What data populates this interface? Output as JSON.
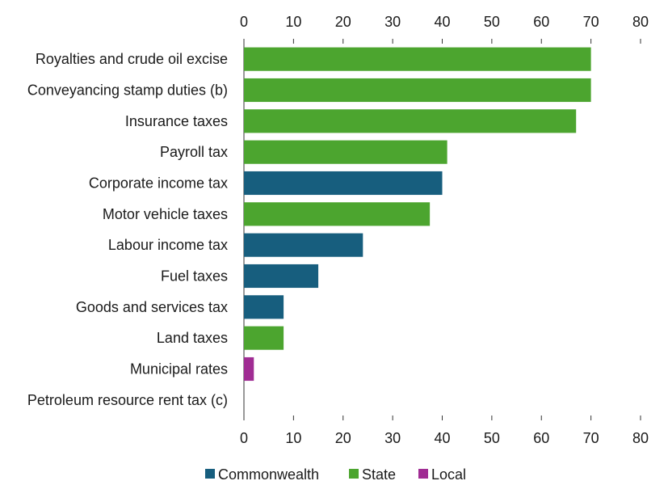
{
  "chart_data": {
    "type": "bar",
    "orientation": "horizontal",
    "title": "",
    "xlabel": "",
    "ylabel": "",
    "xlim": [
      0,
      80
    ],
    "x_ticks": [
      0,
      10,
      20,
      30,
      40,
      50,
      60,
      70,
      80
    ],
    "x_tick_labels": [
      "0",
      "10",
      "20",
      "30",
      "40",
      "50",
      "60",
      "70",
      "80"
    ],
    "axis_labels_top_and_bottom": true,
    "grid": false,
    "legend_position": "bottom",
    "categories": [
      "Royalties and crude oil excise",
      "Conveyancing stamp duties (b)",
      "Insurance taxes",
      "Payroll tax",
      "Corporate income tax",
      "Motor vehicle taxes",
      "Labour income tax",
      "Fuel taxes",
      "Goods and services tax",
      "Land taxes",
      "Municipal rates",
      "Petroleum resource rent tax (c)"
    ],
    "values": [
      70,
      70,
      67,
      41,
      40,
      37.5,
      24,
      15,
      8,
      8,
      2,
      0
    ],
    "groups": [
      "State",
      "State",
      "State",
      "State",
      "Commonwealth",
      "State",
      "Commonwealth",
      "Commonwealth",
      "Commonwealth",
      "State",
      "Local",
      "Commonwealth"
    ],
    "legend": [
      {
        "name": "Commonwealth",
        "color": "#175e7e"
      },
      {
        "name": "State",
        "color": "#4ca52f"
      },
      {
        "name": "Local",
        "color": "#a02c93"
      }
    ]
  }
}
